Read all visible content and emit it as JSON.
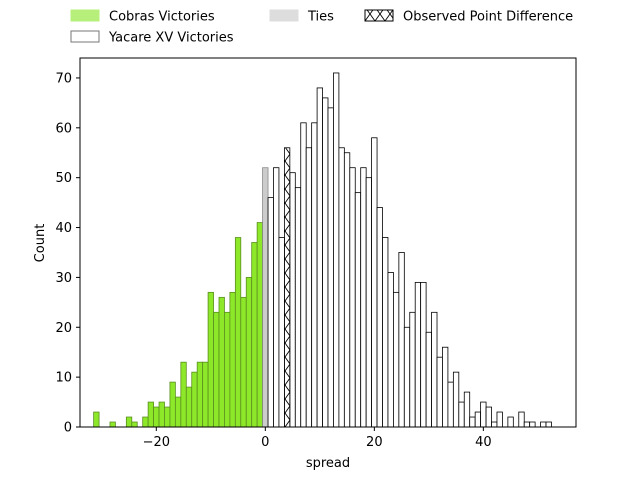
{
  "chart_data": {
    "type": "bar",
    "xlabel": "spread",
    "ylabel": "Count",
    "xlim": [
      -34,
      57
    ],
    "ylim": [
      0,
      74
    ],
    "x_ticks": [
      -20,
      0,
      20,
      40
    ],
    "x_tick_labels": [
      "−20",
      "0",
      "20",
      "40"
    ],
    "y_ticks": [
      0,
      10,
      20,
      30,
      40,
      50,
      60,
      70
    ],
    "y_tick_labels": [
      "0",
      "10",
      "20",
      "30",
      "40",
      "50",
      "60",
      "70"
    ],
    "bin_width": 1,
    "legend": {
      "position": "top",
      "entries": [
        {
          "label": "Cobras Victories",
          "style": "green"
        },
        {
          "label": "Yacare XV Victories",
          "style": "white"
        },
        {
          "label": "Ties",
          "style": "gray"
        },
        {
          "label": "Observed Point Difference",
          "style": "hatch"
        }
      ]
    },
    "colors": {
      "cobras": "#8ee82a",
      "cobras_legend": "#b6f07a",
      "tie": "#cccccc",
      "tie_legend": "#dddddd",
      "yacare": "#ffffff",
      "edge": "#000000"
    },
    "series": [
      {
        "name": "Cobras Victories",
        "x": [
          -31,
          -28,
          -25,
          -24,
          -22,
          -21,
          -20,
          -19,
          -18,
          -17,
          -16,
          -15,
          -14,
          -13,
          -12,
          -11,
          -10,
          -9,
          -8,
          -7,
          -6,
          -5,
          -4,
          -3,
          -2,
          -1
        ],
        "values": [
          3,
          1,
          2,
          1,
          2,
          5,
          4,
          5,
          4,
          9,
          6,
          13,
          8,
          11,
          13,
          13,
          27,
          23,
          26,
          23,
          27,
          38,
          26,
          30,
          37,
          41
        ]
      },
      {
        "name": "Ties",
        "x": [
          0
        ],
        "values": [
          52
        ]
      },
      {
        "name": "Yacare XV Victories",
        "x": [
          1,
          2,
          3,
          5,
          6,
          7,
          8,
          9,
          10,
          11,
          12,
          13,
          14,
          15,
          16,
          17,
          18,
          19,
          20,
          21,
          22,
          23,
          24,
          25,
          26,
          27,
          28,
          29,
          30,
          31,
          32,
          33,
          34,
          35,
          36,
          37,
          38,
          39,
          40,
          41,
          42,
          43,
          44,
          45,
          46,
          47,
          48,
          49,
          50,
          51,
          52
        ],
        "values": [
          46,
          52,
          38,
          51,
          48,
          61,
          56,
          61,
          68,
          66,
          64,
          71,
          56,
          55,
          52,
          47,
          52,
          50,
          58,
          44,
          38,
          31,
          27,
          35,
          20,
          23,
          29,
          29,
          19,
          23,
          14,
          16,
          9,
          11,
          5,
          7,
          2,
          3,
          5,
          4,
          1,
          3,
          0,
          2,
          0,
          3,
          1,
          1,
          0,
          1,
          1
        ]
      },
      {
        "name": "Observed Point Difference",
        "x": [
          4
        ],
        "values": [
          56
        ]
      }
    ]
  }
}
